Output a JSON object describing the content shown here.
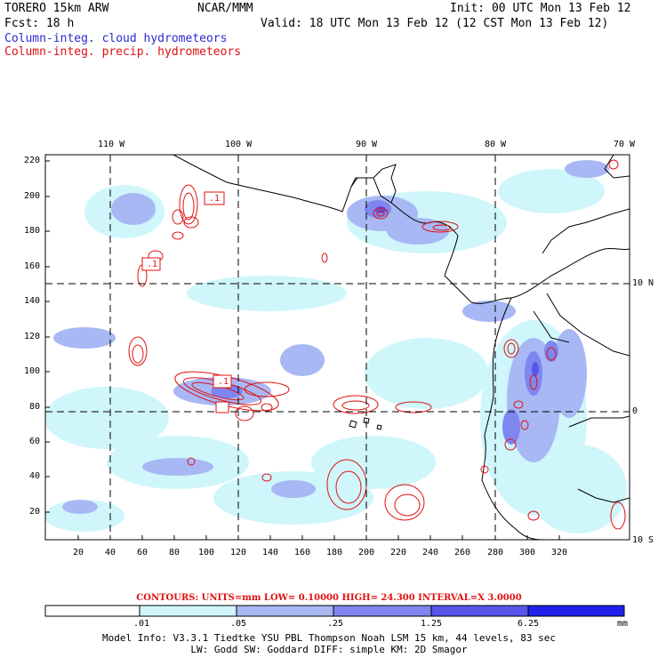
{
  "header": {
    "model": "TORERO  15km ARW",
    "center": "NCAR/MMM",
    "init": "Init: 00 UTC Mon 13 Feb 12",
    "fcst": "Fcst:  18 h",
    "valid": "Valid: 18 UTC Mon 13 Feb 12 (12 CST Mon 13 Feb 12)",
    "field1": "Column-integ. cloud hydrometeors",
    "field2": "Column-integ. precip. hydrometeors"
  },
  "colors": {
    "field1": "#2a2ad0",
    "field2": "#e01010",
    "levels": [
      "#ffffff",
      "#cff6fb",
      "#a8b8f5",
      "#7f86ef",
      "#5656ea",
      "#2020ec"
    ]
  },
  "map": {
    "lon_labels": [
      "110 W",
      "100 W",
      "90 W",
      "80 W",
      "70 W"
    ],
    "lat_labels": [
      "10 N",
      "0",
      "10 S"
    ],
    "y_ticks": [
      "220",
      "200",
      "180",
      "160",
      "140",
      "120",
      "100",
      "80",
      "60",
      "40",
      "20"
    ],
    "x_ticks": [
      "20",
      "40",
      "60",
      "80",
      "100",
      "120",
      "140",
      "160",
      "180",
      "200",
      "220",
      "240",
      "260",
      "280",
      "300",
      "320"
    ],
    "contour_labels": [
      ".1",
      ".1",
      ".1"
    ]
  },
  "legend": {
    "contours": "CONTOURS:  UNITS=mm  LOW= 0.10000     HIGH=  24.300     INTERVAL=X  3.0000",
    "colorbar_labels": [
      ".01",
      ".05",
      ".25",
      "1.25",
      "6.25"
    ],
    "units": "mm"
  },
  "info": {
    "line1": "Model Info: V3.3.1   Tiedtke YSU PBL  Thompson    Noah LSM  15 km,   44 levels,   83 sec",
    "line2": "LW: Godd SW: Goddard DIFF: simple KM: 2D Smagor"
  }
}
